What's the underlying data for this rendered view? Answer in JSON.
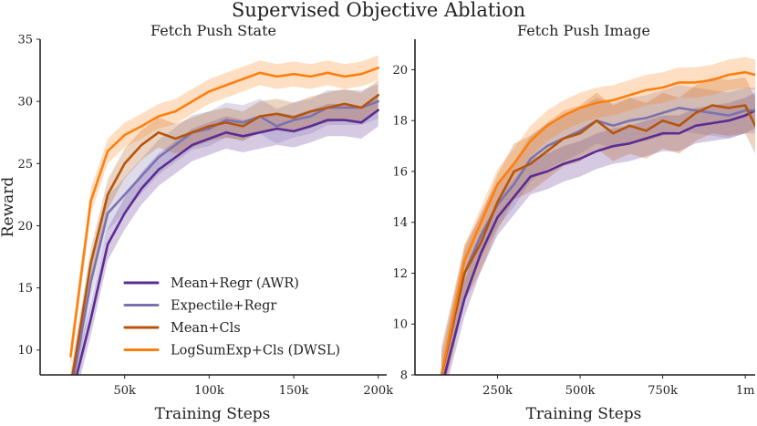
{
  "figure_title": "Supervised Objective Ablation",
  "chart_data": [
    {
      "type": "line",
      "title": "Fetch Push State",
      "xlabel": "Training Steps",
      "ylabel": "Reward",
      "xlim": [
        0,
        205000
      ],
      "ylim": [
        8,
        35
      ],
      "xticks": [
        50000,
        100000,
        150000,
        200000
      ],
      "xtick_labels": [
        "50k",
        "100k",
        "150k",
        "200k"
      ],
      "yticks": [
        10,
        15,
        20,
        25,
        30,
        35
      ],
      "ytick_labels": [
        "10",
        "15",
        "20",
        "25",
        "30",
        "35"
      ],
      "legend": "lower-right",
      "series": [
        {
          "name": "Mean+Regr (AWR)",
          "color": "#5b2c91",
          "x": [
            18000,
            30000,
            40000,
            50000,
            60000,
            70000,
            80000,
            90000,
            100000,
            110000,
            120000,
            130000,
            140000,
            150000,
            160000,
            170000,
            180000,
            190000,
            200000
          ],
          "y": [
            6,
            12.5,
            18.5,
            21,
            23,
            24.5,
            25.5,
            26.5,
            27,
            27.5,
            27.2,
            27.5,
            27.8,
            27.6,
            28,
            28.5,
            28.5,
            28.3,
            29.3
          ],
          "band": 1.3
        },
        {
          "name": "Expectile+Regr",
          "color": "#7b73b0",
          "x": [
            18000,
            30000,
            40000,
            50000,
            60000,
            70000,
            80000,
            90000,
            100000,
            110000,
            120000,
            130000,
            140000,
            150000,
            160000,
            170000,
            180000,
            190000,
            200000
          ],
          "y": [
            6.5,
            15.5,
            21,
            22.5,
            24,
            25.5,
            26.5,
            27.5,
            27.8,
            28.5,
            28.3,
            28.8,
            28,
            28.5,
            28.8,
            29.5,
            29.5,
            29.5,
            30
          ],
          "band": 1.4
        },
        {
          "name": "Mean+Cls",
          "color": "#b5550c",
          "x": [
            18000,
            30000,
            40000,
            50000,
            60000,
            70000,
            80000,
            90000,
            100000,
            110000,
            120000,
            130000,
            140000,
            150000,
            160000,
            170000,
            180000,
            190000,
            200000
          ],
          "y": [
            7,
            17,
            22.5,
            25,
            26.5,
            27.5,
            27,
            27.5,
            28,
            28.3,
            28,
            28.8,
            29,
            28.7,
            29.2,
            29.5,
            29.8,
            29.5,
            30.5
          ],
          "band": 1.2
        },
        {
          "name": "LogSumExp+Cls (DWSL)",
          "color": "#ff7f0e",
          "x": [
            18000,
            30000,
            40000,
            50000,
            60000,
            70000,
            80000,
            90000,
            100000,
            110000,
            120000,
            130000,
            140000,
            150000,
            160000,
            170000,
            180000,
            190000,
            200000
          ],
          "y": [
            9.5,
            22,
            26,
            27.3,
            28,
            28.8,
            29.2,
            30,
            30.8,
            31.3,
            31.8,
            32.3,
            32,
            32.2,
            32,
            32.3,
            32,
            32.2,
            32.7
          ],
          "band": 1.0
        }
      ]
    },
    {
      "type": "line",
      "title": "Fetch Push Image",
      "xlabel": "Training Steps",
      "ylabel": "",
      "xlim": [
        0,
        1030000
      ],
      "ylim": [
        8,
        21.2
      ],
      "xticks": [
        250000,
        500000,
        750000,
        1000000
      ],
      "xtick_labels": [
        "250k",
        "500k",
        "750k",
        "1m"
      ],
      "yticks": [
        8,
        10,
        12,
        14,
        16,
        18,
        20
      ],
      "ytick_labels": [
        "8",
        "10",
        "12",
        "14",
        "16",
        "18",
        "20"
      ],
      "series": [
        {
          "name": "Mean+Regr (AWR)",
          "color": "#5b2c91",
          "x": [
            80000,
            150000,
            200000,
            250000,
            300000,
            350000,
            400000,
            450000,
            500000,
            550000,
            600000,
            650000,
            700000,
            750000,
            800000,
            850000,
            900000,
            950000,
            1000000,
            1030000
          ],
          "y": [
            7.5,
            11,
            12.8,
            14.2,
            15,
            15.8,
            16,
            16.3,
            16.5,
            16.8,
            17,
            17.1,
            17.3,
            17.5,
            17.5,
            17.8,
            17.9,
            18,
            18.2,
            18.4
          ],
          "band": 0.7
        },
        {
          "name": "Expectile+Regr",
          "color": "#7b73b0",
          "x": [
            80000,
            150000,
            200000,
            250000,
            300000,
            350000,
            400000,
            450000,
            500000,
            550000,
            600000,
            650000,
            700000,
            750000,
            800000,
            850000,
            900000,
            950000,
            1000000,
            1030000
          ],
          "y": [
            8,
            12,
            13.5,
            14.7,
            15.5,
            16.5,
            17,
            17.3,
            17.6,
            18,
            17.8,
            18,
            18.1,
            18.3,
            18.5,
            18.4,
            18.3,
            18.2,
            18.4,
            18.4
          ],
          "band": 0.9
        },
        {
          "name": "Mean+Cls",
          "color": "#b5550c",
          "x": [
            80000,
            150000,
            200000,
            250000,
            300000,
            350000,
            400000,
            450000,
            500000,
            550000,
            600000,
            650000,
            700000,
            750000,
            800000,
            850000,
            900000,
            950000,
            1000000,
            1030000
          ],
          "y": [
            8,
            12,
            13.2,
            14.8,
            16,
            16.3,
            16.8,
            17.3,
            17.5,
            18,
            17.5,
            17.8,
            17.6,
            18,
            17.8,
            18.3,
            18.6,
            18.5,
            18.6,
            17.8
          ],
          "band": 1.1
        },
        {
          "name": "LogSumExp+Cls (DWSL)",
          "color": "#ff7f0e",
          "x": [
            80000,
            150000,
            200000,
            250000,
            300000,
            350000,
            400000,
            450000,
            500000,
            550000,
            600000,
            650000,
            700000,
            750000,
            800000,
            850000,
            900000,
            950000,
            1000000,
            1030000
          ],
          "y": [
            8,
            12.5,
            14,
            15.5,
            16.3,
            17.2,
            17.8,
            18.2,
            18.5,
            18.7,
            18.8,
            19,
            19.2,
            19.3,
            19.5,
            19.5,
            19.6,
            19.8,
            19.9,
            19.8
          ],
          "band": 0.6
        }
      ]
    }
  ]
}
